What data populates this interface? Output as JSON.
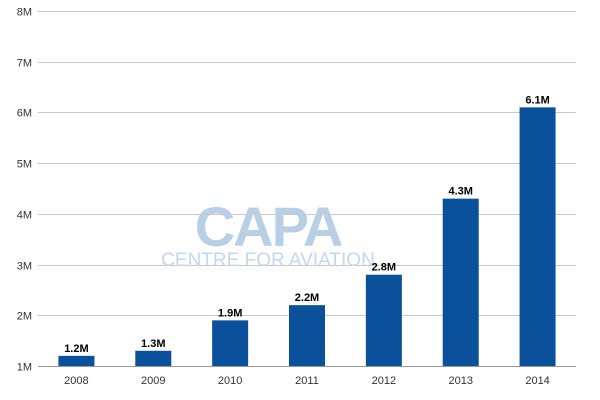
{
  "watermark": {
    "brand": "CAPA",
    "tagline": "CENTRE FOR AVIATION"
  },
  "colors": {
    "bar": "#0b509a",
    "grid": "#c8c8c8",
    "axis": "#999999"
  },
  "chart_data": {
    "type": "bar",
    "categories": [
      "2008",
      "2009",
      "2010",
      "2011",
      "2012",
      "2013",
      "2014"
    ],
    "values": [
      1.2,
      1.3,
      1.9,
      2.2,
      2.8,
      4.3,
      6.1
    ],
    "data_labels": [
      "1.2M",
      "1.3M",
      "1.9M",
      "2.2M",
      "2.8M",
      "4.3M",
      "6.1M"
    ],
    "yticks": [
      1,
      2,
      3,
      4,
      5,
      6,
      7,
      8
    ],
    "ytick_labels": [
      "1M",
      "2M",
      "3M",
      "4M",
      "5M",
      "6M",
      "7M",
      "8M"
    ],
    "ylim": [
      1,
      8
    ],
    "grid": true,
    "title": "",
    "xlabel": "",
    "ylabel": ""
  }
}
